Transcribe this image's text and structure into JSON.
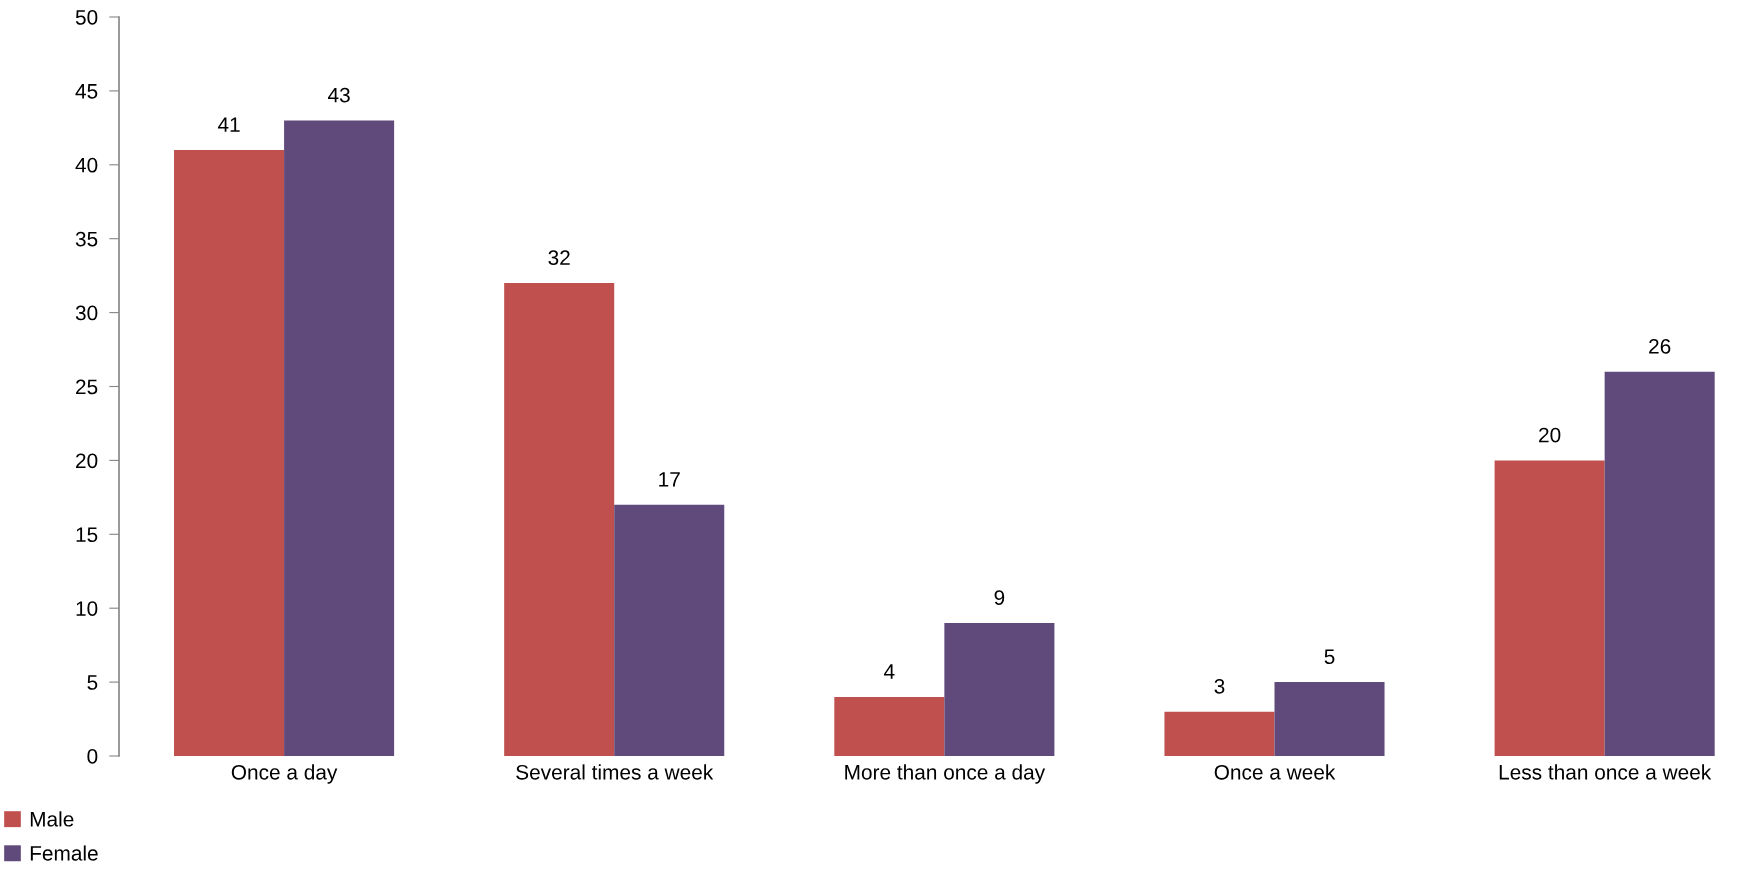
{
  "chart_data": {
    "type": "bar",
    "categories": [
      "Once a day",
      "Several times a week",
      "More than once a day",
      "Once a week",
      "Less than once a week"
    ],
    "series": [
      {
        "name": "Male",
        "color": "#c0504d",
        "values": [
          41,
          32,
          4,
          3,
          20
        ]
      },
      {
        "name": "Female",
        "color": "#604a7b",
        "values": [
          43,
          17,
          9,
          5,
          26
        ]
      }
    ],
    "ylim": [
      0,
      50
    ],
    "yticks": [
      0,
      5,
      10,
      15,
      20,
      25,
      30,
      35,
      40,
      45,
      50
    ],
    "grid": false,
    "legend": "bottom left",
    "data_labels": true
  }
}
